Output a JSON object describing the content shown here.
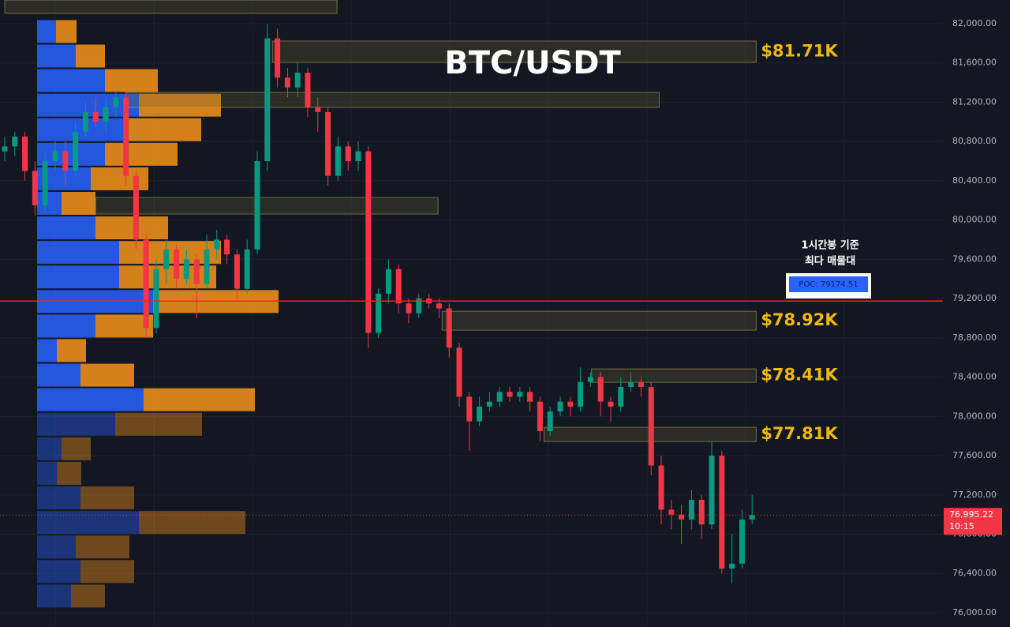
{
  "chart_data": {
    "type": "candlestick",
    "title": "BTC/USDT",
    "ylim": [
      75855,
      82241
    ],
    "yticks": [
      {
        "value": 82000,
        "label": "82,000.00"
      },
      {
        "value": 81600,
        "label": "81,600.00"
      },
      {
        "value": 81200,
        "label": "81,200.00"
      },
      {
        "value": 80800,
        "label": "80,800.00"
      },
      {
        "value": 80400,
        "label": "80,400.00"
      },
      {
        "value": 80000,
        "label": "80,000.00"
      },
      {
        "value": 79600,
        "label": "79,600.00"
      },
      {
        "value": 79200,
        "label": "79,200.00"
      },
      {
        "value": 78800,
        "label": "78,800.00"
      },
      {
        "value": 78400,
        "label": "78,400.00"
      },
      {
        "value": 78000,
        "label": "78,000.00"
      },
      {
        "value": 77600,
        "label": "77,600.00"
      },
      {
        "value": 77200,
        "label": "77,200.00"
      },
      {
        "value": 76800,
        "label": "76,800.00"
      },
      {
        "value": 76400,
        "label": "76,400.00"
      },
      {
        "value": 76000,
        "label": "76,000.00"
      }
    ],
    "grid": true,
    "up_color": "#089981",
    "down_color": "#f23645",
    "candles": {
      "open": [
        80700,
        80750,
        80850,
        80500,
        80150,
        80600,
        80700,
        80500,
        80900,
        81100,
        81000,
        81150,
        81250,
        80450,
        79800,
        78900,
        79500,
        79700,
        79400,
        79600,
        79350,
        79700,
        79800,
        79650,
        79300,
        79700,
        80600,
        81850,
        81450,
        81350,
        81500,
        81150,
        81100,
        80450,
        80750,
        80600,
        80700,
        78850,
        79250,
        79500,
        79150,
        79050,
        79200,
        79150,
        79100,
        78700,
        78200,
        77950,
        78100,
        78150,
        78250,
        78200,
        78250,
        78150,
        77850,
        78050,
        78150,
        78100,
        78350,
        78400,
        78150,
        78100,
        78300,
        78350,
        78300,
        77500,
        77050,
        77000,
        76950,
        77150,
        76900,
        77600,
        76450,
        76500,
        76950
      ],
      "high": [
        80850,
        80900,
        80900,
        80600,
        80700,
        80800,
        80800,
        81000,
        81200,
        81250,
        81250,
        81300,
        81300,
        80500,
        79850,
        79600,
        79800,
        79750,
        79700,
        79650,
        79850,
        79900,
        79850,
        79700,
        79800,
        80700,
        82000,
        81950,
        81550,
        81600,
        81550,
        81250,
        81150,
        80850,
        80800,
        80800,
        80750,
        79300,
        79600,
        79550,
        79200,
        79250,
        79250,
        79200,
        79150,
        78750,
        78250,
        78200,
        78250,
        78300,
        78300,
        78300,
        78300,
        78200,
        78100,
        78200,
        78200,
        78500,
        78450,
        78450,
        78200,
        78400,
        78450,
        78400,
        78350,
        77600,
        77150,
        77100,
        77250,
        77200,
        77750,
        77650,
        76800,
        77050,
        77200
      ],
      "low": [
        80600,
        80650,
        80400,
        80050,
        80100,
        80500,
        80350,
        80450,
        80850,
        80950,
        80900,
        81050,
        80350,
        79700,
        78800,
        78850,
        79350,
        79300,
        79350,
        79000,
        79300,
        79600,
        79550,
        79200,
        79250,
        79650,
        80500,
        81350,
        81250,
        81250,
        81050,
        80900,
        80350,
        80400,
        80500,
        80500,
        78700,
        78800,
        79150,
        79050,
        78950,
        79000,
        79100,
        79000,
        78600,
        78100,
        77650,
        77900,
        78050,
        78100,
        78150,
        78150,
        78050,
        77750,
        77800,
        78000,
        78000,
        78050,
        78300,
        78000,
        77950,
        78050,
        78250,
        78200,
        77400,
        76900,
        76850,
        76700,
        76850,
        76750,
        76850,
        76400,
        76300,
        76450,
        76900
      ],
      "close": [
        80750,
        80850,
        80500,
        80150,
        80600,
        80700,
        80500,
        80900,
        81100,
        81000,
        81150,
        81250,
        80450,
        79800,
        78900,
        79500,
        79700,
        79400,
        79600,
        79350,
        79700,
        79800,
        79650,
        79300,
        79700,
        80600,
        81850,
        81450,
        81350,
        81500,
        81150,
        81100,
        80450,
        80750,
        80600,
        80700,
        78850,
        79250,
        79500,
        79150,
        79050,
        79200,
        79150,
        79100,
        78700,
        78200,
        77950,
        78100,
        78150,
        78250,
        78200,
        78250,
        78150,
        77850,
        78050,
        78150,
        78100,
        78350,
        78400,
        78150,
        78100,
        78300,
        78350,
        78300,
        77500,
        77050,
        77000,
        76950,
        77150,
        76900,
        77600,
        76450,
        76500,
        76950,
        76995.22
      ]
    },
    "volume_profile": {
      "levels": [
        81920,
        81670,
        81420,
        81170,
        80920,
        80670,
        80420,
        80170,
        79920,
        79670,
        79420,
        79170,
        78920,
        78670,
        78420,
        78170,
        77920,
        77670,
        77420,
        77170,
        76920,
        76670,
        76420,
        76170
      ],
      "buy": [
        24,
        49,
        86,
        129,
        110,
        86,
        68,
        31,
        74,
        104,
        104,
        147,
        74,
        25,
        55,
        135,
        99,
        31,
        25,
        55,
        129,
        49,
        55,
        43
      ],
      "sell": [
        26,
        37,
        67,
        104,
        98,
        92,
        73,
        43,
        92,
        129,
        123,
        159,
        73,
        37,
        68,
        141,
        110,
        37,
        31,
        68,
        135,
        68,
        68,
        43
      ],
      "buy_color": "#2962ff",
      "sell_color": "#f7931a"
    },
    "zones": [
      {
        "top": 82241,
        "bottom": 82105,
        "x_start": 0,
        "x_end": 32.9
      },
      {
        "label": "$81.71K",
        "top": 81823,
        "bottom": 81606,
        "x_start": 26.5,
        "x_end": 74.4
      },
      {
        "top": 81300,
        "bottom": 81147,
        "x_start": 12,
        "x_end": 64.8
      },
      {
        "top": 80230,
        "bottom": 80061,
        "x_start": 9,
        "x_end": 42.9
      },
      {
        "label": "$78.92K",
        "top": 79071,
        "bottom": 78878,
        "x_start": 43.3,
        "x_end": 74.4
      },
      {
        "label": "$78.41K",
        "top": 78484,
        "bottom": 78347,
        "x_start": 58.1,
        "x_end": 74.4
      },
      {
        "label": "$77.81K",
        "top": 77889,
        "bottom": 77744,
        "x_start": 53.4,
        "x_end": 74.4
      }
    ],
    "poc": {
      "value": 79174.51,
      "label": "POC: 79174.51",
      "color": "#ff1e1e"
    },
    "annotation": [
      "1시간봉 기준",
      "최다 매물대"
    ],
    "last_price": {
      "value": 76995.22,
      "label": "76,995.22",
      "time": "10:15"
    }
  }
}
